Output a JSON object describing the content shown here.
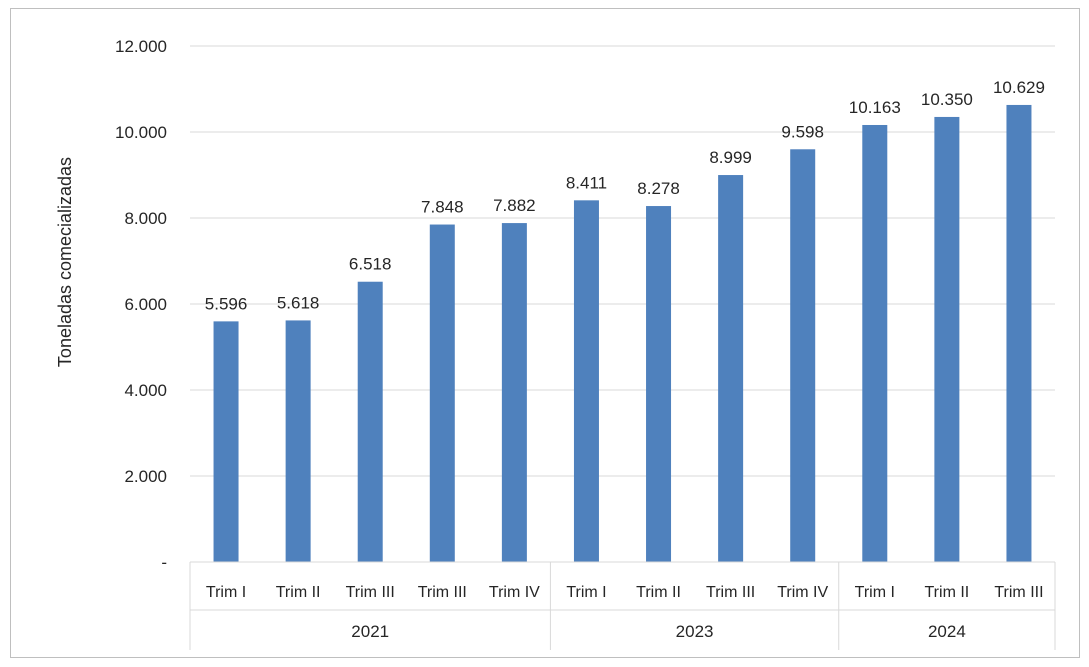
{
  "chart_data": {
    "type": "bar",
    "ylabel": "Toneladas comecializadas",
    "ylim": [
      0,
      12000
    ],
    "yticks": [
      {
        "value": 0,
        "label": "-"
      },
      {
        "value": 2000,
        "label": "2.000"
      },
      {
        "value": 4000,
        "label": "4.000"
      },
      {
        "value": 6000,
        "label": "6.000"
      },
      {
        "value": 8000,
        "label": "8.000"
      },
      {
        "value": 10000,
        "label": "10.000"
      },
      {
        "value": 12000,
        "label": "12.000"
      }
    ],
    "grid": true,
    "legend": "none",
    "bar_color": "#4f81bd",
    "groups": [
      {
        "name": "2021",
        "count": 5
      },
      {
        "name": "2023",
        "count": 4
      },
      {
        "name": "2024",
        "count": 3
      }
    ],
    "categories": [
      "Trim I",
      "Trim II",
      "Trim III",
      "Trim III",
      "Trim IV",
      "Trim I",
      "Trim II",
      "Trim III",
      "Trim IV",
      "Trim I",
      "Trim II",
      "Trim III"
    ],
    "values": [
      5596,
      5618,
      6518,
      7848,
      7882,
      8411,
      8278,
      8999,
      9598,
      10163,
      10350,
      10629
    ],
    "data_labels": [
      "5.596",
      "5.618",
      "6.518",
      "7.848",
      "7.882",
      "8.411",
      "8.278",
      "8.999",
      "9.598",
      "10.163",
      "10.350",
      "10.629"
    ]
  }
}
